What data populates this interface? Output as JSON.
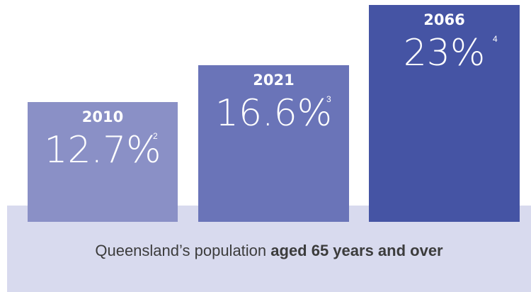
{
  "chart_data": {
    "type": "bar",
    "categories": [
      "2010",
      "2021",
      "2066"
    ],
    "values": [
      12.7,
      16.6,
      23
    ],
    "value_labels": [
      "12.7%",
      "16.6%",
      "23%"
    ],
    "footnotes": [
      "2",
      "3",
      "4"
    ],
    "ylim": [
      0,
      25
    ],
    "grid": false,
    "colors": [
      "#8a90c6",
      "#6a74b8",
      "#4554a4"
    ]
  },
  "caption": {
    "regular": "Queensland’s population ",
    "bold": "aged 65 years and over"
  }
}
